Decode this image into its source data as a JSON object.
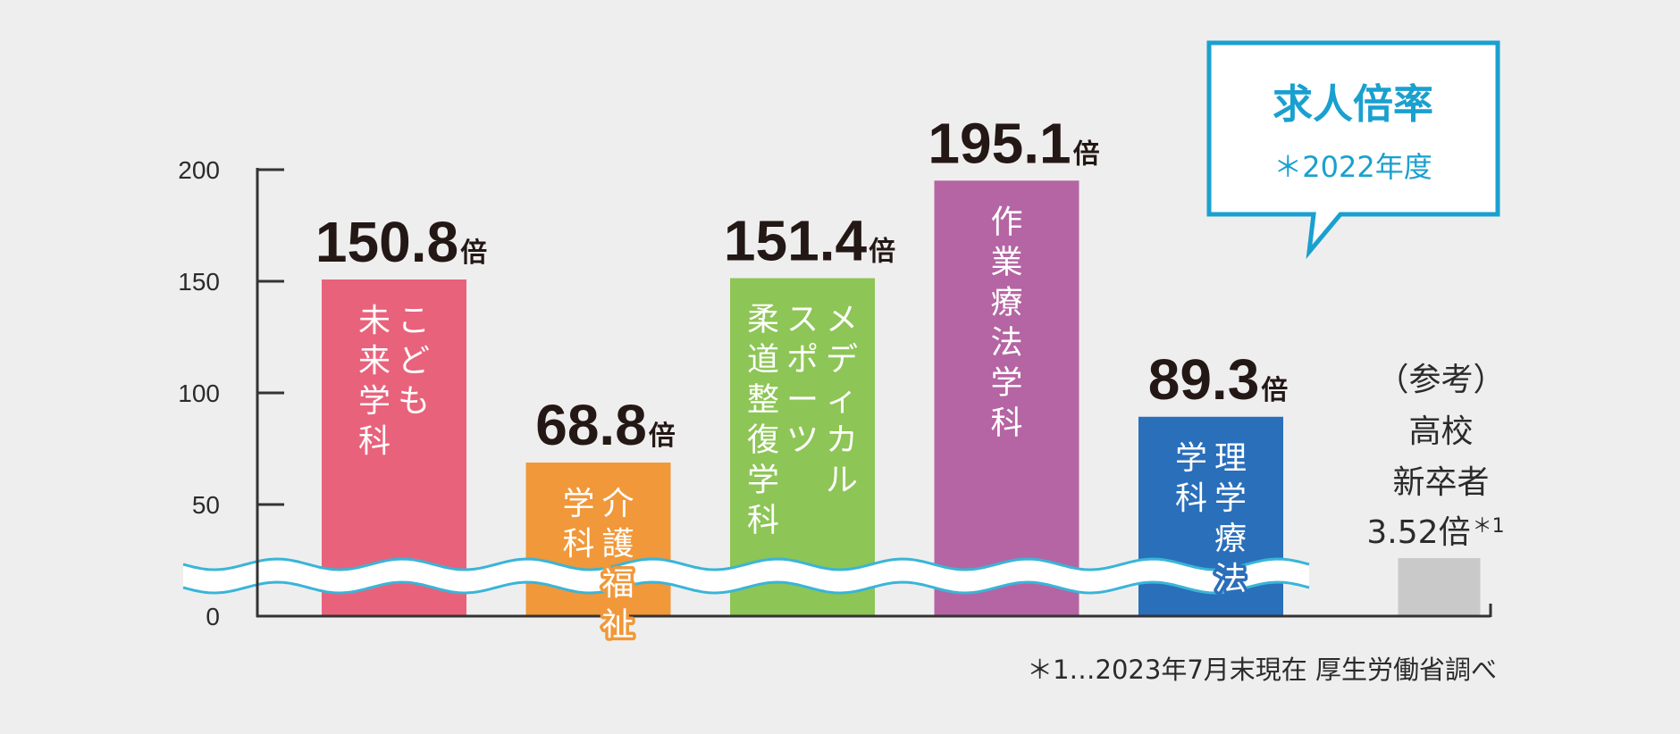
{
  "chart_data": {
    "type": "bar",
    "title": "求人倍率",
    "subtitle": "＊2022年度",
    "ylim": [
      0,
      200
    ],
    "yticks": [
      0,
      50,
      100,
      150,
      200
    ],
    "unit": "倍",
    "axis_break": true,
    "bars": [
      {
        "lines": [
          "こども",
          "未来学科"
        ],
        "value": 150.8,
        "label": "150.8",
        "color": "#e8627b"
      },
      {
        "lines": [
          "介護福祉",
          "学科"
        ],
        "value": 68.8,
        "label": "68.8",
        "color": "#f0983a"
      },
      {
        "lines": [
          "メディカル",
          "スポーツ",
          "柔道整復学科"
        ],
        "value": 151.4,
        "label": "151.4",
        "color": "#8dc556"
      },
      {
        "lines": [
          "作業療法学科"
        ],
        "value": 195.1,
        "label": "195.1",
        "color": "#b565a3"
      },
      {
        "lines": [
          "理学療法",
          "学科"
        ],
        "value": 89.3,
        "label": "89.3",
        "color": "#2a6fba"
      }
    ],
    "reference": {
      "lines": [
        "（参考）",
        "高校",
        "新卒者"
      ],
      "value_text": "3.52倍",
      "footnote_mark": "＊1",
      "value": 3.52,
      "color": "#c9c9c9"
    },
    "footnote": "＊1…2023年7月末現在 厚生労働省調べ"
  }
}
